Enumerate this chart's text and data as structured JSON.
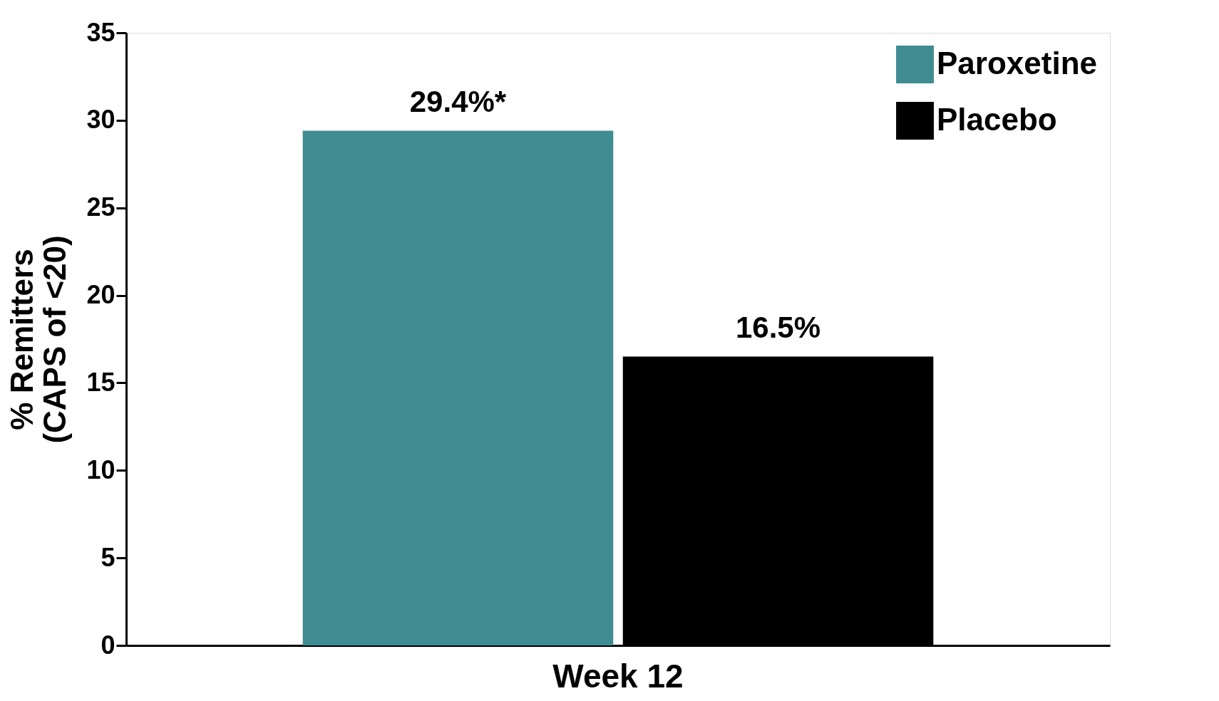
{
  "chart_data": {
    "type": "bar",
    "ylabel": "% Remitters\n(CAPS of <20)",
    "categories": [
      "Week 12"
    ],
    "series": [
      {
        "name": "Paroxetine",
        "color": "#3f8c92",
        "values": [
          29.4
        ],
        "value_labels": [
          "29.4%*"
        ]
      },
      {
        "name": "Placebo",
        "color": "#000000",
        "values": [
          16.5
        ],
        "value_labels": [
          "16.5%"
        ]
      }
    ],
    "ylim": [
      0,
      35
    ],
    "yticks": [
      0,
      5,
      10,
      15,
      20,
      25,
      30,
      35
    ],
    "grid": false,
    "legend": "top right"
  }
}
